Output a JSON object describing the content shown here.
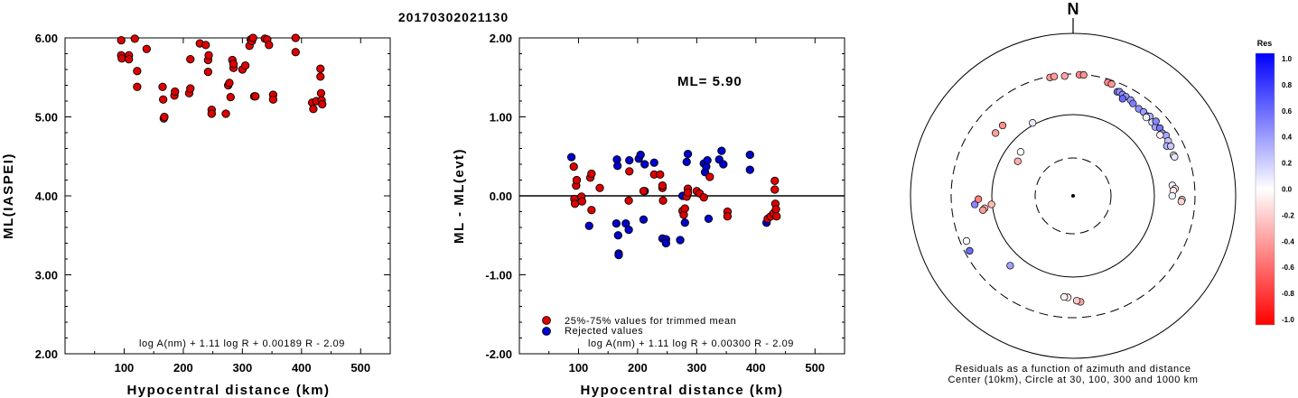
{
  "title": "20170302021130",
  "chart_data": [
    {
      "type": "scatter",
      "ylabel": "ML(IASPEI)",
      "xlabel": "Hypocentral distance (km)",
      "xlim": [
        0,
        550
      ],
      "ylim": [
        2.0,
        6.0
      ],
      "x_ticks": [
        "100",
        "200",
        "300",
        "400",
        "500"
      ],
      "y_ticks": [
        "2.00",
        "3.00",
        "4.00",
        "5.00",
        "6.00"
      ],
      "formula": "log A(nm) + 1.11 log R + 0.00189 R - 2.09",
      "series": [
        {
          "color": "#dd0000",
          "points": [
            [
              95,
              5.97
            ],
            [
              95,
              5.78
            ],
            [
              96,
              5.74
            ],
            [
              108,
              5.78
            ],
            [
              108,
              5.73
            ],
            [
              118,
              5.99
            ],
            [
              122,
              5.58
            ],
            [
              122,
              5.38
            ],
            [
              138,
              5.86
            ],
            [
              165,
              5.38
            ],
            [
              166,
              5.22
            ],
            [
              167,
              4.98
            ],
            [
              168,
              5.0
            ],
            [
              185,
              5.27
            ],
            [
              186,
              5.32
            ],
            [
              210,
              5.3
            ],
            [
              212,
              5.36
            ],
            [
              212,
              5.73
            ],
            [
              228,
              5.93
            ],
            [
              238,
              5.91
            ],
            [
              242,
              5.57
            ],
            [
              242,
              5.72
            ],
            [
              243,
              5.78
            ],
            [
              248,
              5.09
            ],
            [
              248,
              5.04
            ],
            [
              272,
              5.04
            ],
            [
              276,
              5.4
            ],
            [
              278,
              5.43
            ],
            [
              280,
              5.25
            ],
            [
              283,
              5.72
            ],
            [
              285,
              5.62
            ],
            [
              285,
              5.67
            ],
            [
              300,
              5.6
            ],
            [
              305,
              5.65
            ],
            [
              312,
              5.9
            ],
            [
              314,
              5.98
            ],
            [
              316,
              5.96
            ],
            [
              318,
              6.0
            ],
            [
              320,
              5.26
            ],
            [
              322,
              5.26
            ],
            [
              338,
              5.99
            ],
            [
              342,
              5.98
            ],
            [
              345,
              5.91
            ],
            [
              352,
              5.28
            ],
            [
              352,
              5.22
            ],
            [
              390,
              6.0
            ],
            [
              390,
              5.82
            ],
            [
              418,
              5.18
            ],
            [
              420,
              5.1
            ],
            [
              425,
              5.2
            ],
            [
              432,
              5.61
            ],
            [
              432,
              5.51
            ],
            [
              433,
              5.3
            ],
            [
              434,
              5.21
            ],
            [
              435,
              5.16
            ]
          ]
        }
      ]
    },
    {
      "type": "scatter",
      "ylabel": "ML - ML(evt)",
      "xlabel": "Hypocentral distance (km)",
      "xlim": [
        0,
        550
      ],
      "ylim": [
        -2.0,
        2.0
      ],
      "x_ticks": [
        "100",
        "200",
        "300",
        "400",
        "500"
      ],
      "y_ticks": [
        "-2.00",
        "-1.00",
        "0.00",
        "1.00",
        "2.00"
      ],
      "ml_label": "ML= 5.90",
      "formula": "log A(nm) + 1.11 log R + 0.00300 R - 2.09",
      "legend": [
        {
          "label": "25%-75% values for trimmed mean",
          "color": "#dd0000"
        },
        {
          "label": "Rejected values",
          "color": "#0000cc"
        }
      ],
      "series": [
        {
          "name": "25%-75% values for trimmed mean",
          "color": "#dd0000",
          "points": [
            [
              92,
              0.37
            ],
            [
              93,
              -0.04
            ],
            [
              94,
              -0.1
            ],
            [
              96,
              0.13
            ],
            [
              97,
              0.2
            ],
            [
              105,
              -0.01
            ],
            [
              106,
              -0.07
            ],
            [
              120,
              0.23
            ],
            [
              122,
              -0.18
            ],
            [
              122,
              0.28
            ],
            [
              136,
              0.1
            ],
            [
              185,
              -0.06
            ],
            [
              186,
              0.31
            ],
            [
              210,
              0.06
            ],
            [
              228,
              0.27
            ],
            [
              238,
              0.27
            ],
            [
              242,
              0.1
            ],
            [
              242,
              0.13
            ],
            [
              243,
              -0.06
            ],
            [
              276,
              -0.19
            ],
            [
              278,
              -0.24
            ],
            [
              280,
              -0.16
            ],
            [
              283,
              -0.01
            ],
            [
              285,
              0.09
            ],
            [
              285,
              0.04
            ],
            [
              300,
              0.06
            ],
            [
              305,
              0.03
            ],
            [
              312,
              -0.02
            ],
            [
              322,
              0.24
            ],
            [
              352,
              -0.2
            ],
            [
              352,
              -0.26
            ],
            [
              420,
              -0.29
            ],
            [
              425,
              -0.26
            ],
            [
              430,
              -0.22
            ],
            [
              432,
              0.19
            ],
            [
              432,
              0.08
            ],
            [
              433,
              -0.1
            ],
            [
              434,
              -0.17
            ],
            [
              435,
              -0.26
            ]
          ]
        },
        {
          "name": "Rejected values",
          "color": "#0000cc",
          "points": [
            [
              88,
              0.49
            ],
            [
              118,
              -0.38
            ],
            [
              164,
              -0.35
            ],
            [
              165,
              0.46
            ],
            [
              166,
              0.38
            ],
            [
              167,
              -0.5
            ],
            [
              168,
              -0.73
            ],
            [
              168,
              -0.75
            ],
            [
              180,
              -0.35
            ],
            [
              185,
              -0.43
            ],
            [
              186,
              0.45
            ],
            [
              202,
              0.47
            ],
            [
              205,
              0.52
            ],
            [
              210,
              -0.3
            ],
            [
              212,
              0.4
            ],
            [
              212,
              0.06
            ],
            [
              228,
              0.42
            ],
            [
              242,
              -0.54
            ],
            [
              248,
              -0.55
            ],
            [
              248,
              -0.6
            ],
            [
              272,
              -0.56
            ],
            [
              276,
              0.0
            ],
            [
              280,
              -0.34
            ],
            [
              283,
              0.43
            ],
            [
              285,
              0.53
            ],
            [
              312,
              0.41
            ],
            [
              314,
              0.3
            ],
            [
              316,
              0.37
            ],
            [
              318,
              0.45
            ],
            [
              320,
              -0.29
            ],
            [
              338,
              0.46
            ],
            [
              342,
              0.57
            ],
            [
              345,
              0.4
            ],
            [
              390,
              0.52
            ],
            [
              390,
              0.33
            ],
            [
              418,
              -0.34
            ]
          ]
        }
      ]
    },
    {
      "type": "scatter",
      "subtype": "polar",
      "north_label": "N",
      "caption_line1": "Residuals as a function of azimuth and distance",
      "caption_line2": "Center (10km), Circle at 30, 100, 300 and 1000 km",
      "rings_km": [
        30,
        100,
        300,
        1000
      ],
      "colorbar": {
        "title": "Res",
        "min": -1.0,
        "max": 1.0,
        "ticks": [
          "1.0",
          "0.8",
          "0.6",
          "0.4",
          "0.2",
          "0.0",
          "-0.2",
          "-0.4",
          "-0.6",
          "-0.8",
          "-1.0"
        ]
      },
      "points": [
        [
          -11,
          290,
          -0.41
        ],
        [
          -9,
          292,
          -0.39
        ],
        [
          -4,
          286,
          -0.36
        ],
        [
          3,
          295,
          -0.45
        ],
        [
          5,
          296,
          -0.43
        ],
        [
          17,
          275,
          -0.48
        ],
        [
          19,
          272,
          -0.42
        ],
        [
          23,
          236,
          0.49
        ],
        [
          24,
          242,
          0.46
        ],
        [
          26,
          234,
          0.44
        ],
        [
          28,
          232,
          0.42
        ],
        [
          31,
          228,
          0.4
        ],
        [
          27,
          212,
          0.58
        ],
        [
          33,
          218,
          0.51
        ],
        [
          37,
          212,
          0.43
        ],
        [
          40,
          215,
          0.38
        ],
        [
          43,
          212,
          0.34
        ],
        [
          44,
          220,
          0.3
        ],
        [
          43,
          202,
          0.05
        ],
        [
          47,
          206,
          0.12
        ],
        [
          50,
          202,
          0.36
        ],
        [
          48,
          226,
          0.47
        ],
        [
          52,
          218,
          0.53
        ],
        [
          55,
          212,
          0.41
        ],
        [
          57,
          222,
          0.34
        ],
        [
          60,
          216,
          0.23
        ],
        [
          55,
          196,
          -0.05
        ],
        [
          62,
          196,
          0.3
        ],
        [
          63,
          215,
          0.22
        ],
        [
          68,
          208,
          0.05
        ],
        [
          69,
          210,
          0.1
        ],
        [
          84,
          165,
          0.05
        ],
        [
          86,
          176,
          -0.12
        ],
        [
          87,
          168,
          -0.09
        ],
        [
          92,
          211,
          -0.15
        ],
        [
          93,
          208,
          -0.18
        ],
        [
          90,
          162,
          0.06
        ],
        [
          176,
          197,
          -0.35
        ],
        [
          178,
          190,
          -0.22
        ],
        [
          183,
          174,
          -0.09
        ],
        [
          185,
          173,
          -0.05
        ],
        [
          222,
          141,
          0.37
        ],
        [
          247,
          254,
          0.0
        ],
        [
          242,
          264,
          0.58
        ],
        [
          265,
          160,
          0.47
        ],
        [
          264,
          102,
          -0.28
        ],
        [
          262,
          124,
          -0.33
        ],
        [
          261,
          131,
          -0.39
        ],
        [
          268,
          144,
          -0.51
        ],
        [
          315,
          164,
          -0.44
        ],
        [
          309,
          165,
          -0.37
        ],
        [
          302,
          64,
          -0.32
        ],
        [
          310,
          70,
          0.0
        ],
        [
          331,
          106,
          0.08
        ]
      ]
    }
  ]
}
